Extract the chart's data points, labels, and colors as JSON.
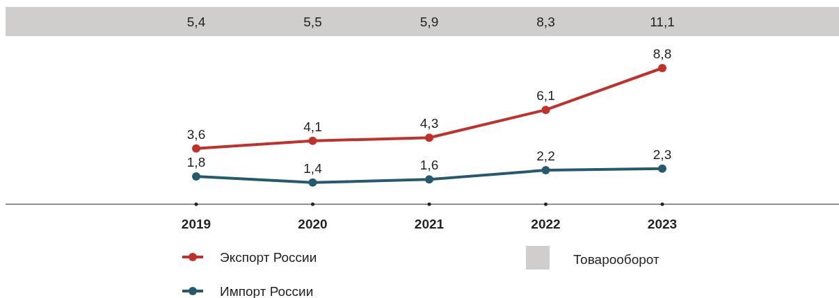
{
  "chart_data": {
    "type": "line",
    "categories": [
      "2019",
      "2020",
      "2021",
      "2022",
      "2023"
    ],
    "series": [
      {
        "name": "Экспорт России",
        "color": "#c0312b",
        "values": [
          3.6,
          4.1,
          4.3,
          6.1,
          8.8
        ],
        "value_labels": [
          "3,6",
          "4,1",
          "4,3",
          "6,1",
          "8,8"
        ]
      },
      {
        "name": "Импорт России",
        "color": "#255a6e",
        "values": [
          1.8,
          1.4,
          1.6,
          2.2,
          2.3
        ],
        "value_labels": [
          "1,8",
          "1,4",
          "1,6",
          "2,2",
          "2,3"
        ]
      }
    ],
    "totals": [
      "5,4",
      "5,5",
      "5,9",
      "8,3",
      "11,1"
    ],
    "annotations": [
      "Товарооборот"
    ],
    "marker": "circle",
    "line_style": "solid",
    "legend": "bottom"
  }
}
